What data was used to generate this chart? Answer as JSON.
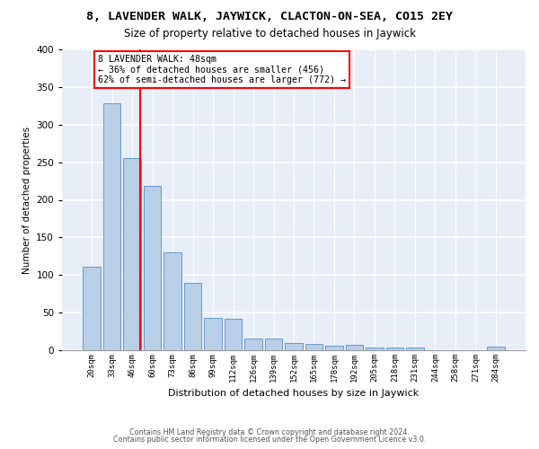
{
  "title": "8, LAVENDER WALK, JAYWICK, CLACTON-ON-SEA, CO15 2EY",
  "subtitle": "Size of property relative to detached houses in Jaywick",
  "xlabel": "Distribution of detached houses by size in Jaywick",
  "ylabel": "Number of detached properties",
  "categories": [
    "20sqm",
    "33sqm",
    "46sqm",
    "60sqm",
    "73sqm",
    "86sqm",
    "99sqm",
    "112sqm",
    "126sqm",
    "139sqm",
    "152sqm",
    "165sqm",
    "178sqm",
    "192sqm",
    "205sqm",
    "218sqm",
    "231sqm",
    "244sqm",
    "258sqm",
    "271sqm",
    "284sqm"
  ],
  "values": [
    111,
    328,
    255,
    218,
    130,
    90,
    43,
    42,
    15,
    15,
    9,
    8,
    6,
    7,
    4,
    3,
    4,
    0,
    0,
    0,
    5
  ],
  "bar_color": "#b8cfe8",
  "bar_edge_color": "#6699cc",
  "annotation_text": "8 LAVENDER WALK: 48sqm\n← 36% of detached houses are smaller (456)\n62% of semi-detached houses are larger (772) →",
  "vline_color": "red",
  "vline_x": 2.42,
  "ylim_max": 400,
  "yticks": [
    0,
    50,
    100,
    150,
    200,
    250,
    300,
    350,
    400
  ],
  "background_color": "#e8eef8",
  "footer1": "Contains HM Land Registry data © Crown copyright and database right 2024.",
  "footer2": "Contains public sector information licensed under the Open Government Licence v3.0."
}
